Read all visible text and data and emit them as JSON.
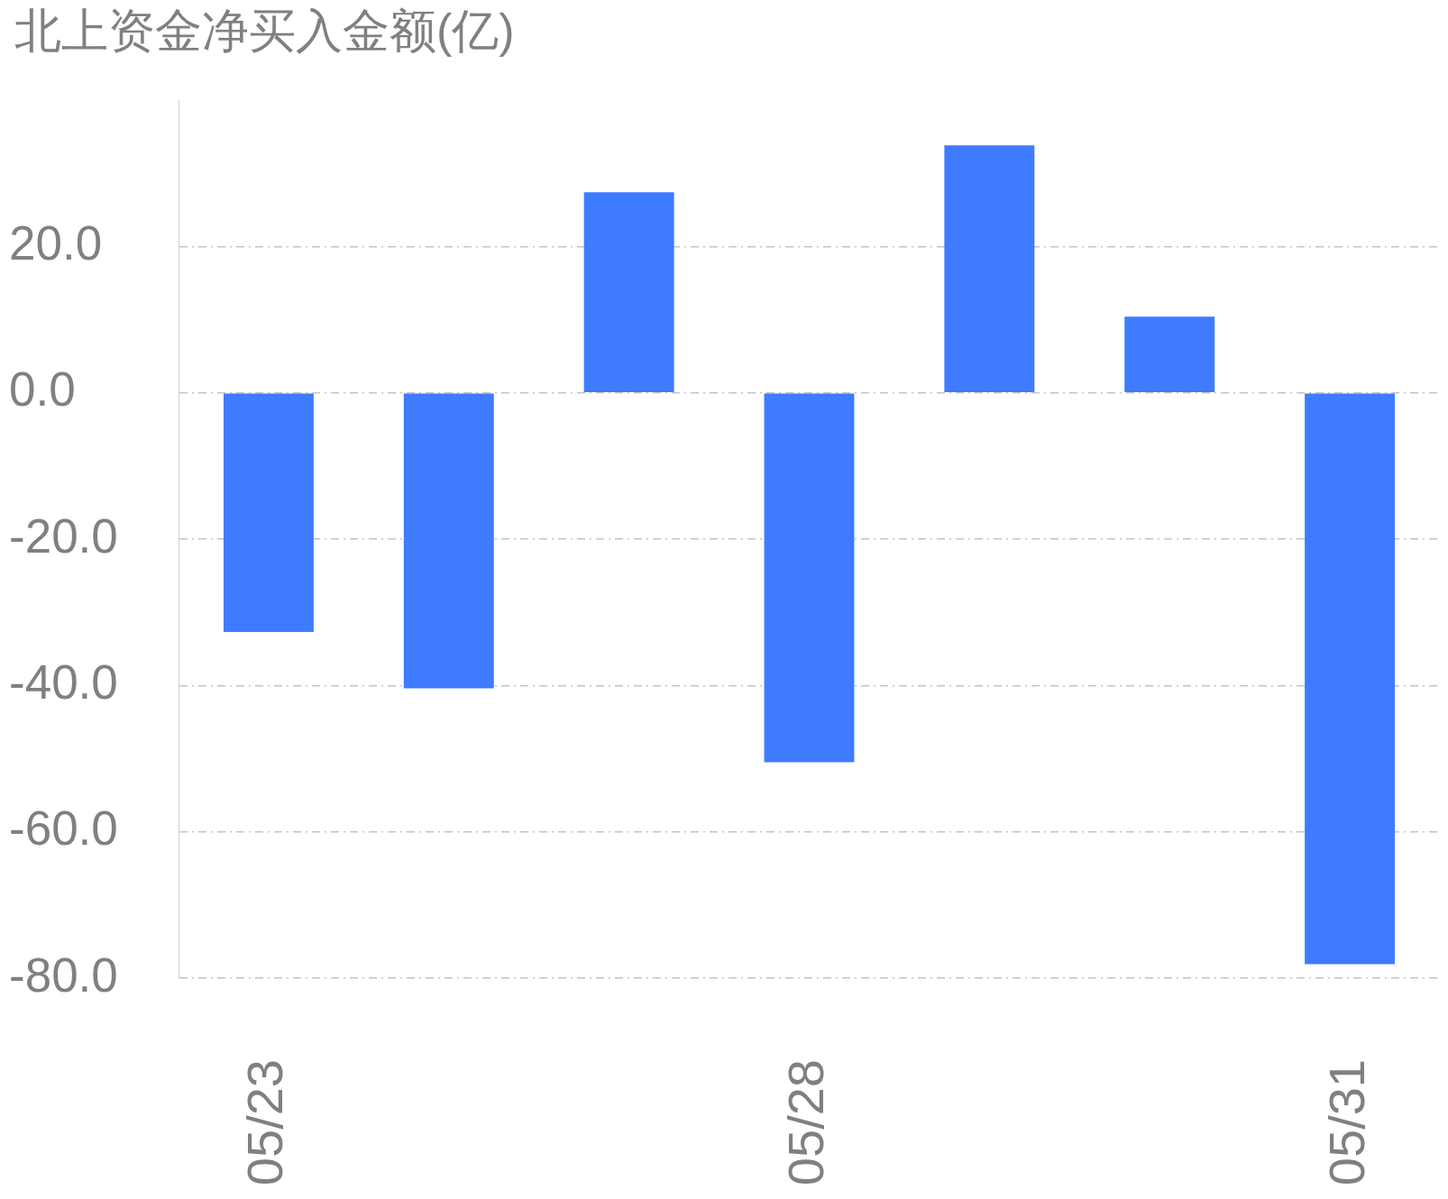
{
  "chart_data": {
    "type": "bar",
    "title": "北上资金净买入金额(亿)",
    "categories": [
      "05/23",
      null,
      null,
      "05/28",
      null,
      null,
      "05/31"
    ],
    "values": [
      -32.7,
      -40.4,
      27.4,
      -50.5,
      33.8,
      10.4,
      -78.1
    ],
    "color": "#3e7bff",
    "ylim": [
      -80,
      40
    ],
    "yticks": [
      {
        "value": -80,
        "label": "-80.0"
      },
      {
        "value": -60,
        "label": "-60.0"
      },
      {
        "value": -40,
        "label": "-40.0"
      },
      {
        "value": -20,
        "label": "-20.0"
      },
      {
        "value": 0,
        "label": "0.0"
      },
      {
        "value": 20,
        "label": "20.0"
      }
    ],
    "grid": "y"
  }
}
